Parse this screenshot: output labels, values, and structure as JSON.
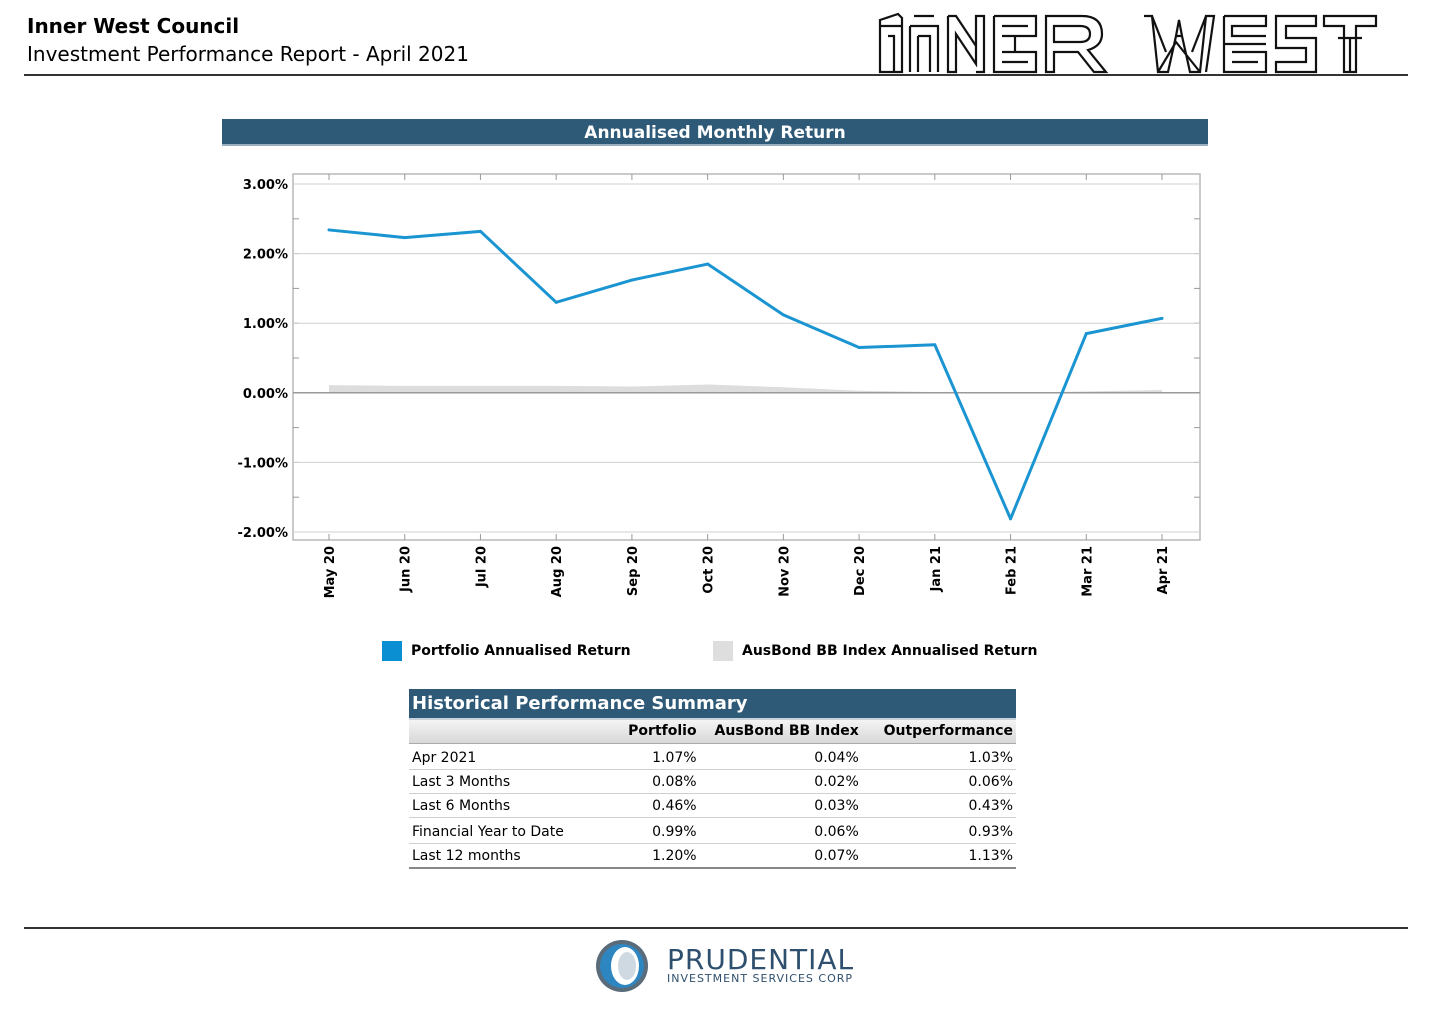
{
  "header": {
    "title": "Inner West Council",
    "subtitle": "Investment Performance Report - April 2021",
    "logo_text": "INNER WEST"
  },
  "chart_title": "Annualised Monthly Return",
  "chart_data": {
    "type": "line",
    "title": "Annualised Monthly Return",
    "xlabel": "",
    "ylabel": "",
    "categories": [
      "May 20",
      "Jun 20",
      "Jul 20",
      "Aug 20",
      "Sep 20",
      "Oct 20",
      "Nov 20",
      "Dec 20",
      "Jan 21",
      "Feb 21",
      "Mar 21",
      "Apr 21"
    ],
    "series": [
      {
        "name": "Portfolio Annualised Return",
        "type": "line",
        "color": "#1a95d2",
        "values": [
          2.34,
          2.23,
          2.32,
          1.3,
          1.62,
          1.85,
          1.12,
          0.65,
          0.69,
          -1.81,
          0.85,
          1.07
        ]
      },
      {
        "name": "AusBond BB Index Annualised Return",
        "type": "area",
        "color": "#dddddd",
        "values": [
          0.11,
          0.1,
          0.1,
          0.1,
          0.09,
          0.12,
          0.08,
          0.03,
          0.01,
          0.0,
          0.02,
          0.04
        ]
      }
    ],
    "y_ticks": [
      "3.00%",
      "2.00%",
      "1.00%",
      "0.00%",
      "-1.00%",
      "-2.00%"
    ],
    "y_tick_values": [
      3,
      2,
      1,
      0,
      -1,
      -2
    ],
    "ylim": [
      -2.0,
      3.0
    ],
    "grid": true,
    "legend_position": "bottom"
  },
  "legend": [
    {
      "label": "Portfolio Annualised Return",
      "color": "#0b8fd3"
    },
    {
      "label": "AusBond BB Index Annualised Return",
      "color": "#dedede"
    }
  ],
  "summary": {
    "title": "Historical Performance Summary",
    "columns": [
      "",
      "Portfolio",
      "AusBond BB Index",
      "Outperformance"
    ],
    "rows": [
      {
        "period": "Apr 2021",
        "portfolio": "1.07%",
        "index": "0.04%",
        "out": "1.03%"
      },
      {
        "period": "Last 3 Months",
        "portfolio": "0.08%",
        "index": "0.02%",
        "out": "0.06%"
      },
      {
        "period": "Last 6 Months",
        "portfolio": "0.46%",
        "index": "0.03%",
        "out": "0.43%"
      },
      {
        "period": "Financial Year to Date",
        "portfolio": "0.99%",
        "index": "0.06%",
        "out": "0.93%"
      },
      {
        "period": "Last 12 months",
        "portfolio": "1.20%",
        "index": "0.07%",
        "out": "1.13%"
      }
    ]
  },
  "footer": {
    "company": "PRUDENTIAL",
    "company_sub": "INVESTMENT SERVICES CORP"
  }
}
